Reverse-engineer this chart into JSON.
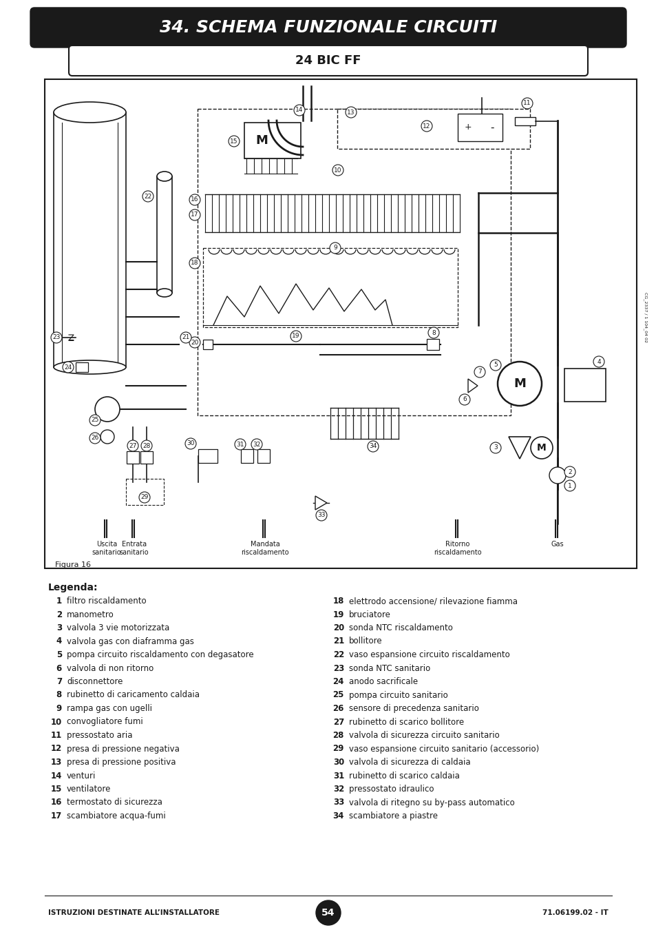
{
  "title": "34. SCHEMA FUNZIONALE CIRCUITI",
  "subtitle": "24 BIC FF",
  "figura": "Figura 16",
  "codice": "CG_2337 / 1 104_04 02",
  "footer_left": "ISTRUZIONI DESTINATE ALL’INSTALLATORE",
  "footer_right": "71.06199.02 - IT",
  "footer_page": "54",
  "legenda_title": "Legenda:",
  "legenda_left": [
    [
      "1",
      "filtro riscaldamento"
    ],
    [
      "2",
      "manometro"
    ],
    [
      "3",
      "valvola 3 vie motorizzata"
    ],
    [
      "4",
      "valvola gas con diaframma gas"
    ],
    [
      "5",
      "pompa circuito riscaldamento con degasatore"
    ],
    [
      "6",
      "valvola di non ritorno"
    ],
    [
      "7",
      "disconnettore"
    ],
    [
      "8",
      "rubinetto di caricamento caldaia"
    ],
    [
      "9",
      "rampa gas con ugelli"
    ],
    [
      "10",
      "convogliatore fumi"
    ],
    [
      "11",
      "pressostato aria"
    ],
    [
      "12",
      "presa di pressione negativa"
    ],
    [
      "13",
      "presa di pressione positiva"
    ],
    [
      "14",
      "venturi"
    ],
    [
      "15",
      "ventilatore"
    ],
    [
      "16",
      "termostato di sicurezza"
    ],
    [
      "17",
      "scambiatore acqua-fumi"
    ]
  ],
  "legenda_right": [
    [
      "18",
      "elettrodo accensione/ rilevazione fiamma"
    ],
    [
      "19",
      "bruciatore"
    ],
    [
      "20",
      "sonda NTC riscaldamento"
    ],
    [
      "21",
      "bollitore"
    ],
    [
      "22",
      "vaso espansione circuito riscaldamento"
    ],
    [
      "23",
      "sonda NTC sanitario"
    ],
    [
      "24",
      "anodo sacrificale"
    ],
    [
      "25",
      "pompa circuito sanitario"
    ],
    [
      "26",
      "sensore di precedenza sanitario"
    ],
    [
      "27",
      "rubinetto di scarico bollitore"
    ],
    [
      "28",
      "valvola di sicurezza circuito sanitario"
    ],
    [
      "29",
      "vaso espansione circuito sanitario (accessorio)"
    ],
    [
      "30",
      "valvola di sicurezza di caldaia"
    ],
    [
      "31",
      "rubinetto di scarico caldaia"
    ],
    [
      "32",
      "pressostato idraulico"
    ],
    [
      "33",
      "valvola di ritegno su by-pass automatico"
    ],
    [
      "34",
      "scambiatore a piastre"
    ]
  ],
  "bg_color": "#ffffff",
  "title_bg": "#1a1a1a",
  "title_color": "#ffffff",
  "line_color": "#1a1a1a"
}
